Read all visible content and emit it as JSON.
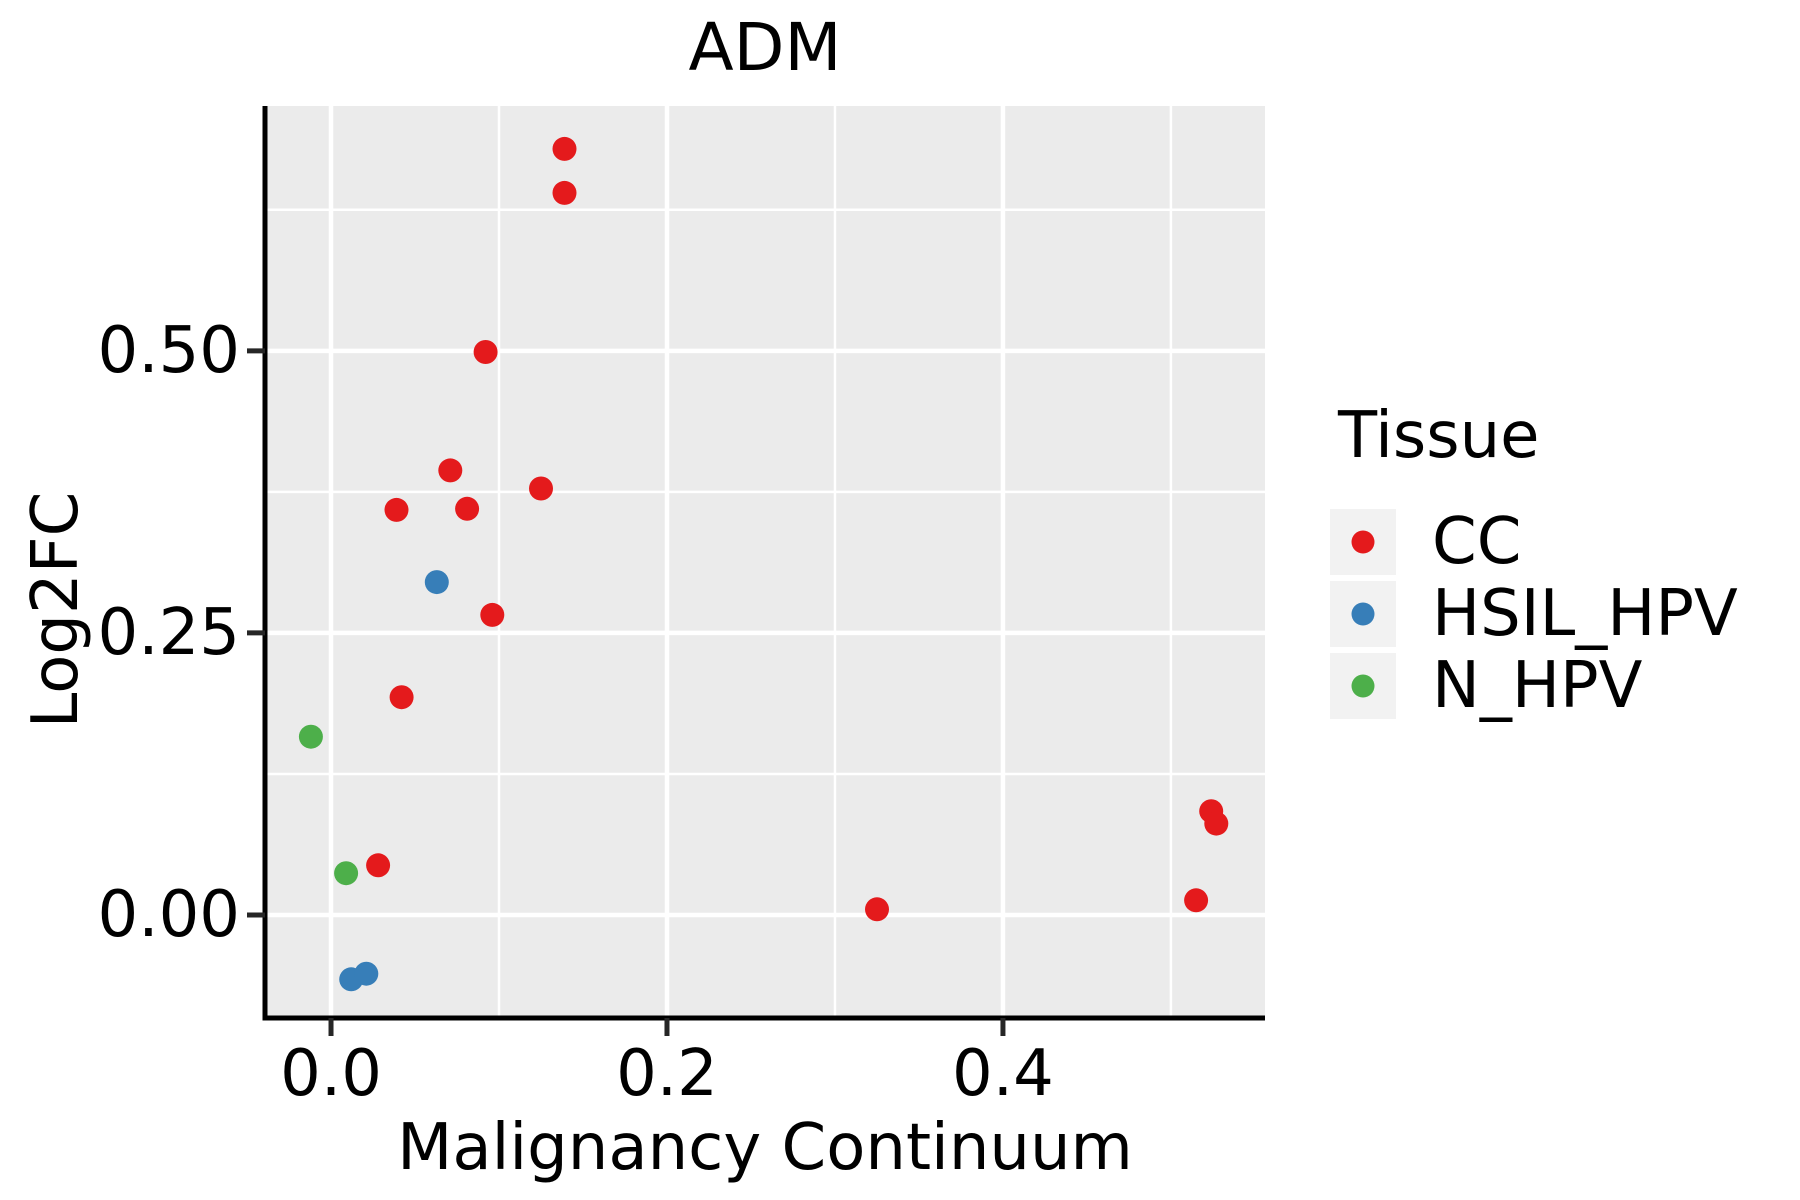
{
  "chart_data": {
    "type": "scatter",
    "title": "ADM",
    "xlabel": "Malignancy Continuum",
    "ylabel": "Log2FC",
    "xlim": [
      -0.0393,
      0.556
    ],
    "ylim": [
      -0.0913,
      0.717
    ],
    "grid": "on",
    "panel_bg": "#EBEBEB",
    "grid_color": "#FFFFFF",
    "axis_color": "#000000",
    "tick_color": "#262626",
    "x_major_ticks": {
      "values": [
        0.0,
        0.2,
        0.4
      ],
      "labels": [
        "0.0",
        "0.2",
        "0.4"
      ]
    },
    "y_major_ticks": {
      "values": [
        0.0,
        0.25,
        0.5
      ],
      "labels": [
        "0.00",
        "0.25",
        "0.50"
      ]
    },
    "x_minor_ticks": [
      0.1,
      0.3,
      0.5
    ],
    "y_minor_ticks": [
      0.125,
      0.375,
      0.625
    ],
    "legend": {
      "title": "Tissue",
      "position": "right"
    },
    "series": [
      {
        "name": "CC",
        "color": "#E41A1C",
        "points": [
          [
            0.139,
            0.679
          ],
          [
            0.139,
            0.64
          ],
          [
            0.092,
            0.499
          ],
          [
            0.071,
            0.394
          ],
          [
            0.125,
            0.378
          ],
          [
            0.039,
            0.359
          ],
          [
            0.081,
            0.36
          ],
          [
            0.096,
            0.266
          ],
          [
            0.042,
            0.193
          ],
          [
            0.028,
            0.044
          ],
          [
            0.325,
            0.005
          ],
          [
            0.524,
            0.092
          ],
          [
            0.527,
            0.081
          ],
          [
            0.515,
            0.013
          ]
        ]
      },
      {
        "name": "HSIL_HPV",
        "color": "#377EB8",
        "points": [
          [
            0.063,
            0.295
          ],
          [
            0.012,
            -0.057
          ],
          [
            0.021,
            -0.052
          ]
        ]
      },
      {
        "name": "N_HPV",
        "color": "#4DAF4A",
        "points": [
          [
            -0.012,
            0.158
          ],
          [
            0.009,
            0.037
          ]
        ]
      }
    ]
  }
}
